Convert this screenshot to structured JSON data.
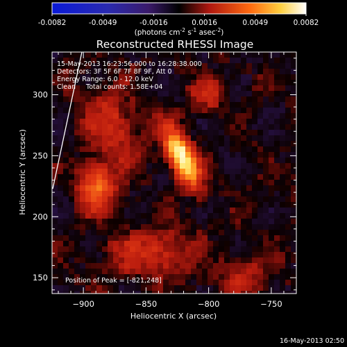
{
  "colorbar": {
    "ticks": [
      "-0.0082",
      "-0.0049",
      "-0.0016",
      "0.0016",
      "0.0049",
      "0.0082"
    ],
    "unit_main": "(photons cm",
    "unit_exp1": "-2",
    "unit_mid": " s",
    "unit_exp2": "-1",
    "unit_mid2": " asec",
    "unit_exp3": "-2",
    "unit_end": ")"
  },
  "info": {
    "time_range": "15-May-2013 16:23:56.000 to 16:28:38.000",
    "detectors": "Detectors: 3F 5F 6F 7F 8F 9F, Att 0",
    "energy": "Energy Range: 6.0 - 12.0 keV",
    "clean": "Clean     Total counts: 1.58E+04",
    "peak": "Position of Peak = [-821,248]"
  },
  "footer_timestamp": "16-May-2013 02:50",
  "chart_data": {
    "type": "heatmap",
    "title": "Reconstructed RHESSI Image",
    "xlabel": "Heliocentric X (arcsec)",
    "ylabel": "Heliocentric Y (arcsec)",
    "xlim": [
      -925,
      -730
    ],
    "ylim": [
      137,
      335
    ],
    "x_ticks": [
      -900,
      -850,
      -800,
      -750
    ],
    "y_ticks": [
      150,
      200,
      250,
      300
    ],
    "x_tick_labels": [
      "−900",
      "−850",
      "−800",
      "−750"
    ],
    "y_tick_labels": [
      "150",
      "200",
      "250",
      "300"
    ],
    "colorbar_range": [
      -0.0082,
      0.0082
    ],
    "peak": [
      -821,
      248
    ],
    "colors": {
      "background": "#000000",
      "low": "#2e1b6e",
      "mid": "#c81e10",
      "high": "#ffffff"
    },
    "sources": [
      {
        "x": -821,
        "y": 248,
        "sx": 7,
        "sy": 18,
        "rot": -25,
        "amp": 1.0
      },
      {
        "x": -890,
        "y": 225,
        "sx": 10,
        "sy": 14,
        "rot": 0,
        "amp": 0.55
      },
      {
        "x": -875,
        "y": 275,
        "sx": 14,
        "sy": 24,
        "rot": -20,
        "amp": 0.32
      },
      {
        "x": -845,
        "y": 170,
        "sx": 24,
        "sy": 14,
        "rot": 0,
        "amp": 0.34
      },
      {
        "x": -800,
        "y": 300,
        "sx": 10,
        "sy": 10,
        "rot": 0,
        "amp": 0.28
      },
      {
        "x": -770,
        "y": 150,
        "sx": 14,
        "sy": 10,
        "rot": 0,
        "amp": 0.26
      }
    ]
  }
}
